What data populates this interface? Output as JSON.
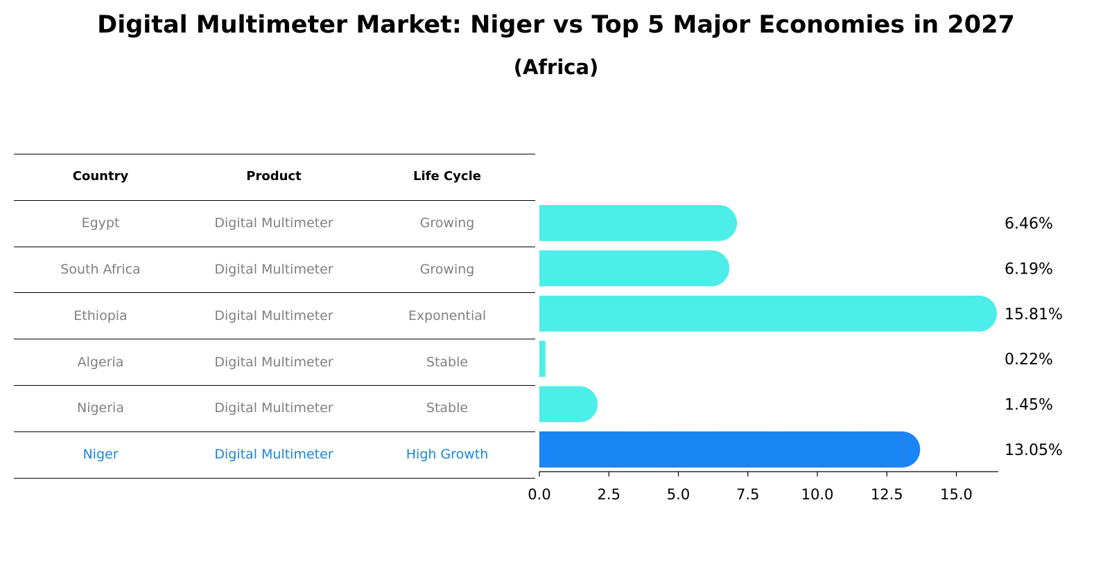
{
  "title": "Digital Multimeter Market: Niger vs Top 5 Major Economies in 2027",
  "subtitle": "(Africa)",
  "table": {
    "headers": [
      "Country",
      "Product",
      "Life Cycle"
    ],
    "rows": [
      [
        "Egypt",
        "Digital Multimeter",
        "Growing"
      ],
      [
        "South Africa",
        "Digital Multimeter",
        "Growing"
      ],
      [
        "Ethiopia",
        "Digital Multimeter",
        "Exponential"
      ],
      [
        "Algeria",
        "Digital Multimeter",
        "Stable"
      ],
      [
        "Nigeria",
        "Digital Multimeter",
        "Stable"
      ],
      [
        "Niger",
        "Digital Multimeter",
        "High Growth"
      ]
    ],
    "highlight_row": 5
  },
  "colors": {
    "bar": "#4deee9",
    "highlight_bar": "#1a85f5",
    "highlight_text": "#1a85d6",
    "body_text": "#808080"
  },
  "chart_data": {
    "type": "bar",
    "orientation": "horizontal",
    "categories": [
      "Egypt",
      "South Africa",
      "Ethiopia",
      "Algeria",
      "Nigeria",
      "Niger"
    ],
    "values": [
      6.46,
      6.19,
      15.81,
      0.22,
      1.45,
      13.05
    ],
    "value_labels": [
      "6.46%",
      "6.19%",
      "15.81%",
      "0.22%",
      "1.45%",
      "13.05%"
    ],
    "xticks": [
      "0.0",
      "2.5",
      "5.0",
      "7.5",
      "10.0",
      "12.5",
      "15.0"
    ],
    "xlim": [
      0,
      16.6
    ],
    "highlight_index": 5
  }
}
